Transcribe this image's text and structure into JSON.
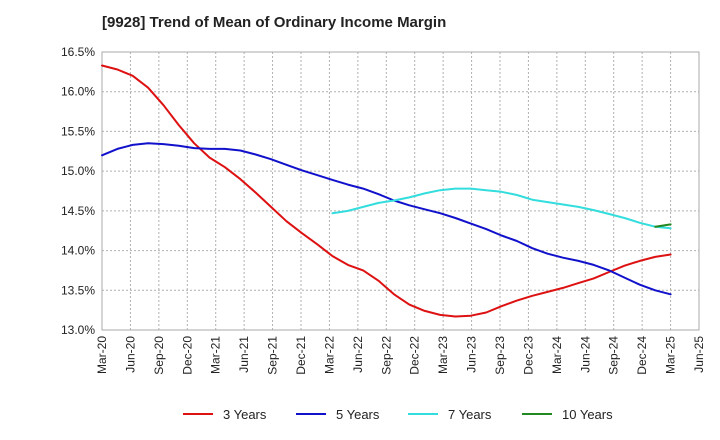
{
  "chart_data": {
    "type": "line",
    "title": "[9928]  Trend of Mean of Ordinary Income Margin",
    "xlabel": "",
    "ylabel": "",
    "x_ticks": [
      "Mar-20",
      "Jun-20",
      "Sep-20",
      "Dec-20",
      "Mar-21",
      "Jun-21",
      "Sep-21",
      "Dec-21",
      "Mar-22",
      "Jun-22",
      "Sep-22",
      "Dec-22",
      "Mar-23",
      "Jun-23",
      "Sep-23",
      "Dec-23",
      "Mar-24",
      "Jun-24",
      "Sep-24",
      "Dec-24",
      "Mar-25",
      "Jun-25"
    ],
    "y_ticks": [
      "13.0%",
      "13.5%",
      "14.0%",
      "14.5%",
      "15.0%",
      "15.5%",
      "16.0%",
      "16.5%"
    ],
    "ylim": [
      13.0,
      16.5
    ],
    "grid": true,
    "legend_position": "bottom",
    "series": [
      {
        "name": "3 Years",
        "color": "#dd1111",
        "values": [
          16.33,
          16.28,
          16.2,
          16.05,
          15.83,
          15.58,
          15.35,
          15.17,
          15.05,
          14.9,
          14.73,
          14.55,
          14.37,
          14.22,
          14.08,
          13.93,
          13.82,
          13.75,
          13.62,
          13.45,
          13.32,
          13.24,
          13.19,
          13.17,
          13.18,
          13.22,
          13.3,
          13.37,
          13.43,
          13.48,
          13.53,
          13.59,
          13.65,
          13.73,
          13.81,
          13.87,
          13.92,
          13.95
        ]
      },
      {
        "name": "5 Years",
        "color": "#1111cc",
        "values": [
          15.2,
          15.28,
          15.33,
          15.35,
          15.34,
          15.32,
          15.29,
          15.28,
          15.28,
          15.26,
          15.21,
          15.15,
          15.08,
          15.01,
          14.95,
          14.89,
          14.83,
          14.78,
          14.71,
          14.63,
          14.57,
          14.52,
          14.47,
          14.41,
          14.34,
          14.27,
          14.19,
          14.12,
          14.03,
          13.96,
          13.91,
          13.87,
          13.82,
          13.75,
          13.66,
          13.57,
          13.5,
          13.45
        ]
      },
      {
        "name": "7 Years",
        "color": "#33dddd",
        "values": [
          null,
          null,
          null,
          null,
          null,
          null,
          null,
          null,
          null,
          null,
          null,
          null,
          null,
          null,
          null,
          14.47,
          14.5,
          14.55,
          14.6,
          14.63,
          14.67,
          14.72,
          14.76,
          14.78,
          14.78,
          14.76,
          14.74,
          14.7,
          14.64,
          14.61,
          14.58,
          14.55,
          14.51,
          14.46,
          14.41,
          14.35,
          14.3,
          14.28
        ]
      },
      {
        "name": "10 Years",
        "color": "#228822",
        "values": [
          null,
          null,
          null,
          null,
          null,
          null,
          null,
          null,
          null,
          null,
          null,
          null,
          null,
          null,
          null,
          null,
          null,
          null,
          null,
          null,
          null,
          null,
          null,
          null,
          null,
          null,
          null,
          null,
          null,
          null,
          null,
          null,
          null,
          null,
          null,
          null,
          14.3,
          14.33
        ]
      }
    ]
  }
}
